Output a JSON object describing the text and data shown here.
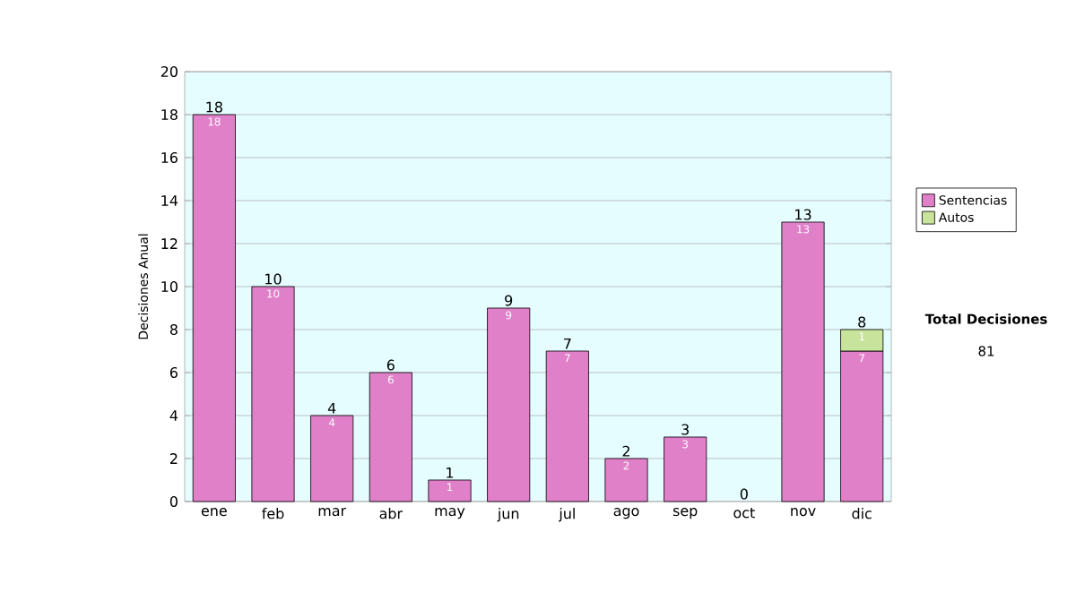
{
  "chart_data": {
    "type": "bar",
    "stacked": true,
    "ylabel": "Decisiones Anual",
    "categories": [
      "ene",
      "feb",
      "mar",
      "abr",
      "may",
      "jun",
      "jul",
      "ago",
      "sep",
      "oct",
      "nov",
      "dic"
    ],
    "series": [
      {
        "name": "Sentencias",
        "color": "#df80c8",
        "values": [
          18,
          10,
          4,
          6,
          1,
          9,
          7,
          2,
          3,
          0,
          13,
          7
        ],
        "value_labels": [
          "18",
          "10",
          "4",
          "6",
          "1",
          "9",
          "7",
          "2",
          "3",
          null,
          "13",
          "7"
        ]
      },
      {
        "name": "Autos",
        "color": "#c8e39c",
        "values": [
          null,
          null,
          null,
          null,
          null,
          null,
          null,
          null,
          null,
          null,
          null,
          1
        ],
        "value_labels": [
          null,
          null,
          null,
          null,
          null,
          null,
          null,
          null,
          null,
          null,
          null,
          "1"
        ]
      }
    ],
    "totals": [
      "18",
      "10",
      "4",
      "6",
      "1",
      "9",
      "7",
      "2",
      "3",
      "0",
      "13",
      "8"
    ],
    "ylim": [
      0,
      20
    ],
    "yticks": [
      0,
      2,
      4,
      6,
      8,
      10,
      12,
      14,
      16,
      18,
      20
    ],
    "grid": "y",
    "legend": "right",
    "annotations": [
      "Total Decisiones",
      "81"
    ]
  }
}
